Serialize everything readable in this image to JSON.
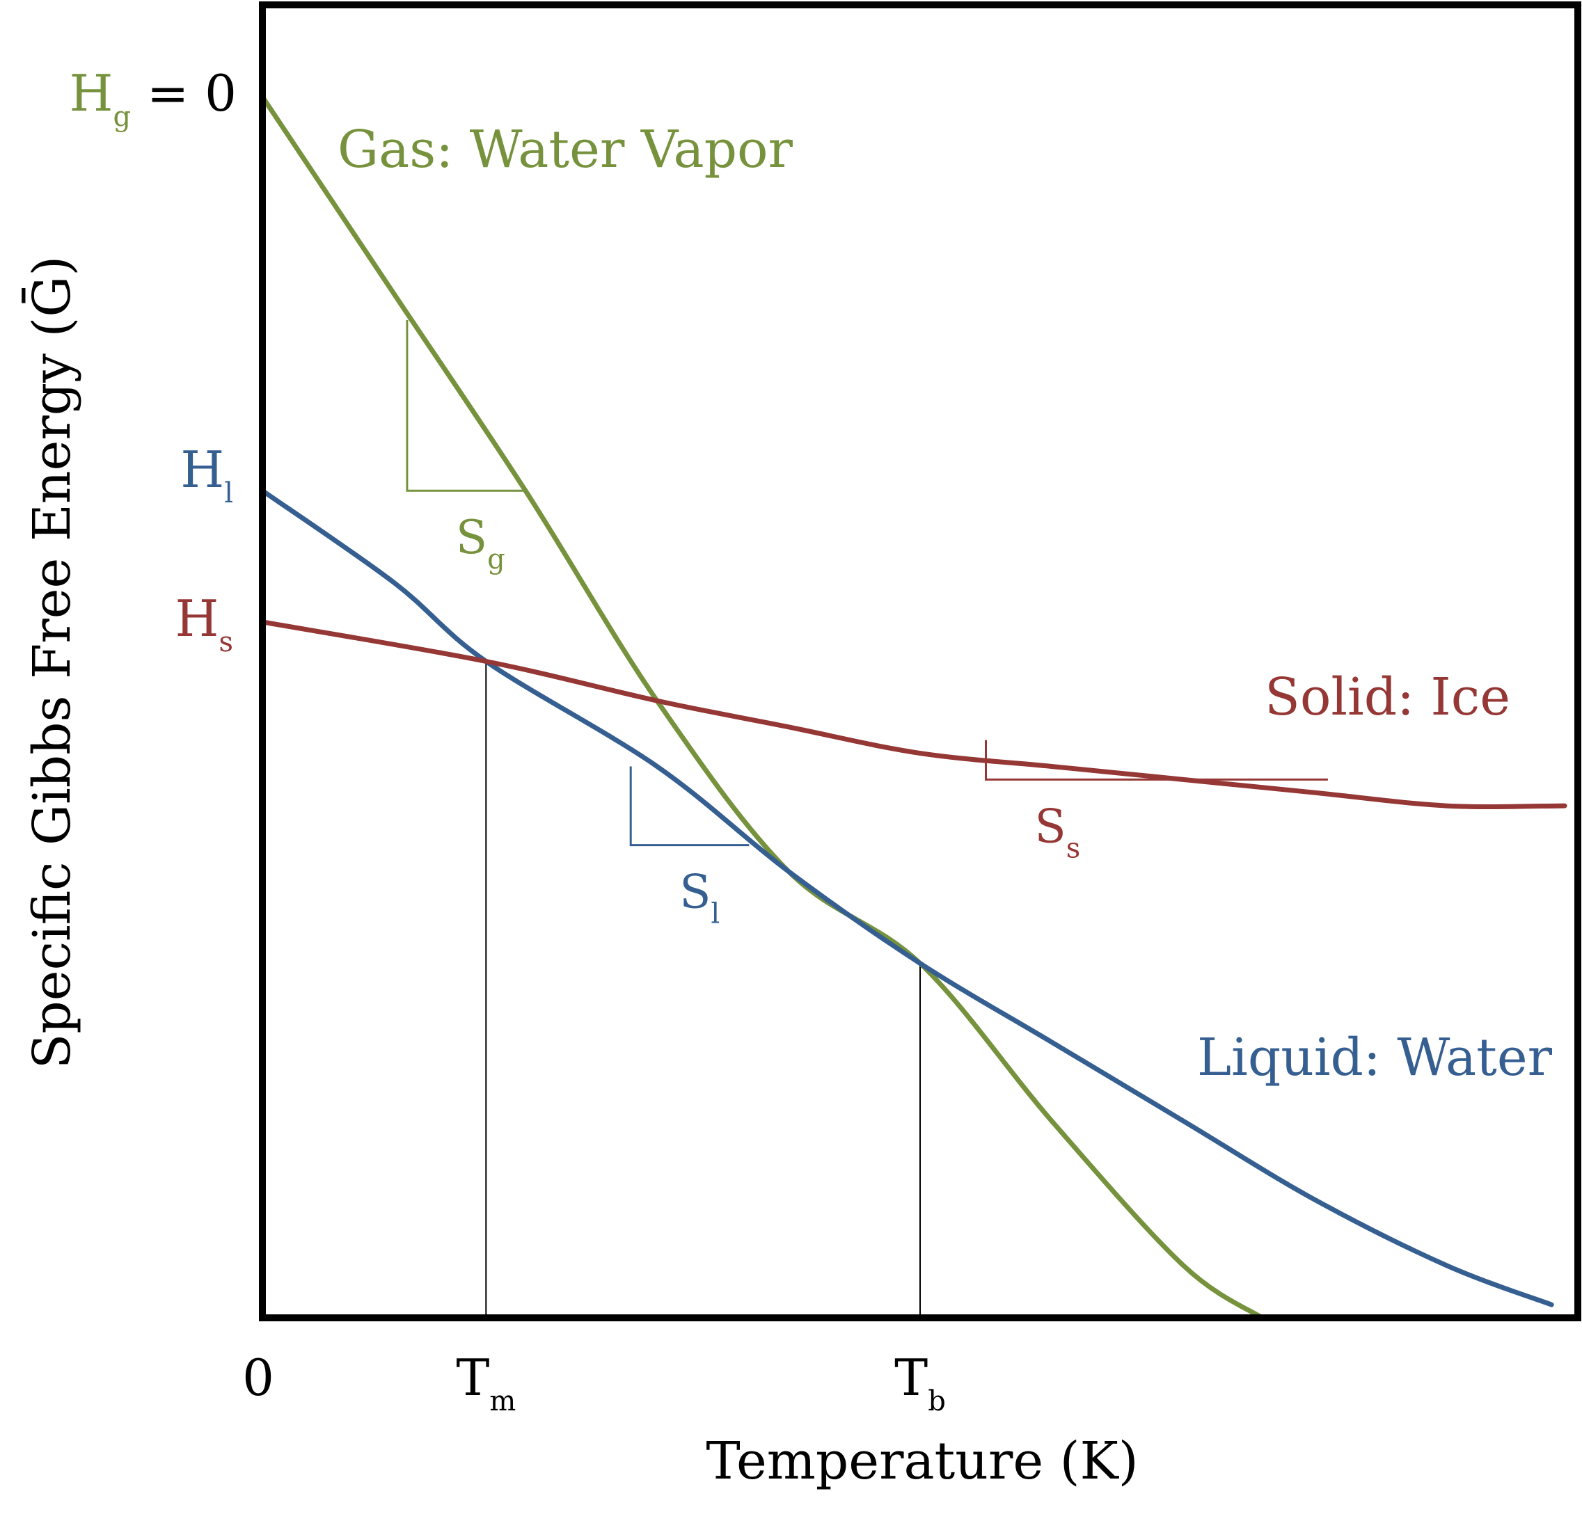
{
  "chart_data": {
    "type": "line",
    "xlabel": "Temperature (K)",
    "ylabel": "Specific Gibbs Free Energy (Ḡ)",
    "xlim": [
      0,
      1
    ],
    "ylim": [
      0,
      1
    ],
    "grid": false,
    "x_ticks": [
      {
        "id": "zero",
        "main": "0",
        "sub": "",
        "x": 0
      },
      {
        "id": "tm",
        "main": "T",
        "sub": "m",
        "x": 0.17
      },
      {
        "id": "tb",
        "main": "T",
        "sub": "b",
        "x": 0.5
      }
    ],
    "y_labels": [
      {
        "id": "hg",
        "main": "H",
        "sub": "g",
        "suffix": " = 0",
        "series": "gas",
        "y": 0.93
      },
      {
        "id": "hl",
        "main": "H",
        "sub": "l",
        "suffix": "",
        "series": "liquid",
        "y": 0.63
      },
      {
        "id": "hs",
        "main": "H",
        "sub": "s",
        "suffix": "",
        "series": "solid",
        "y": 0.53
      }
    ],
    "series": [
      {
        "id": "gas",
        "name": "Gas: Water Vapor",
        "color": "#76923c",
        "points": [
          [
            0,
            0.93
          ],
          [
            0.1,
            0.78
          ],
          [
            0.2,
            0.63
          ],
          [
            0.3,
            0.47
          ],
          [
            0.4,
            0.34
          ],
          [
            0.5,
            0.27
          ],
          [
            0.6,
            0.15
          ],
          [
            0.7,
            0.04
          ],
          [
            0.76,
            0.0
          ]
        ]
      },
      {
        "id": "liquid",
        "name": "Liquid: Water",
        "color": "#365f91",
        "points": [
          [
            0,
            0.63
          ],
          [
            0.1,
            0.56
          ],
          [
            0.17,
            0.5
          ],
          [
            0.3,
            0.42
          ],
          [
            0.4,
            0.34
          ],
          [
            0.5,
            0.27
          ],
          [
            0.6,
            0.21
          ],
          [
            0.7,
            0.15
          ],
          [
            0.8,
            0.09
          ],
          [
            0.9,
            0.04
          ],
          [
            0.98,
            0.01
          ]
        ]
      },
      {
        "id": "solid",
        "name": "Solid: Ice",
        "color": "#953735",
        "points": [
          [
            0,
            0.53
          ],
          [
            0.17,
            0.5
          ],
          [
            0.3,
            0.47
          ],
          [
            0.4,
            0.45
          ],
          [
            0.5,
            0.43
          ],
          [
            0.6,
            0.42
          ],
          [
            0.7,
            0.41
          ],
          [
            0.8,
            0.4
          ],
          [
            0.9,
            0.39
          ],
          [
            0.99,
            0.39
          ]
        ]
      }
    ],
    "guide_lines": [
      {
        "id": "tm",
        "x": 0.17,
        "y_top": 0.5
      },
      {
        "id": "tb",
        "x": 0.5,
        "y_top": 0.27
      }
    ],
    "slope_markers": [
      {
        "id": "sg",
        "series": "gas",
        "main": "S",
        "sub": "g",
        "x1": 0.11,
        "x2": 0.2,
        "y_top": 0.76,
        "y_bottom": 0.63
      },
      {
        "id": "sl",
        "series": "liquid",
        "main": "S",
        "sub": "l",
        "x1": 0.28,
        "x2": 0.37,
        "y_top": 0.42,
        "y_bottom": 0.36
      },
      {
        "id": "ss",
        "series": "solid",
        "main": "S",
        "sub": "s",
        "x1": 0.55,
        "x2": 0.81,
        "y_top": 0.44,
        "y_bottom": 0.41
      }
    ]
  }
}
